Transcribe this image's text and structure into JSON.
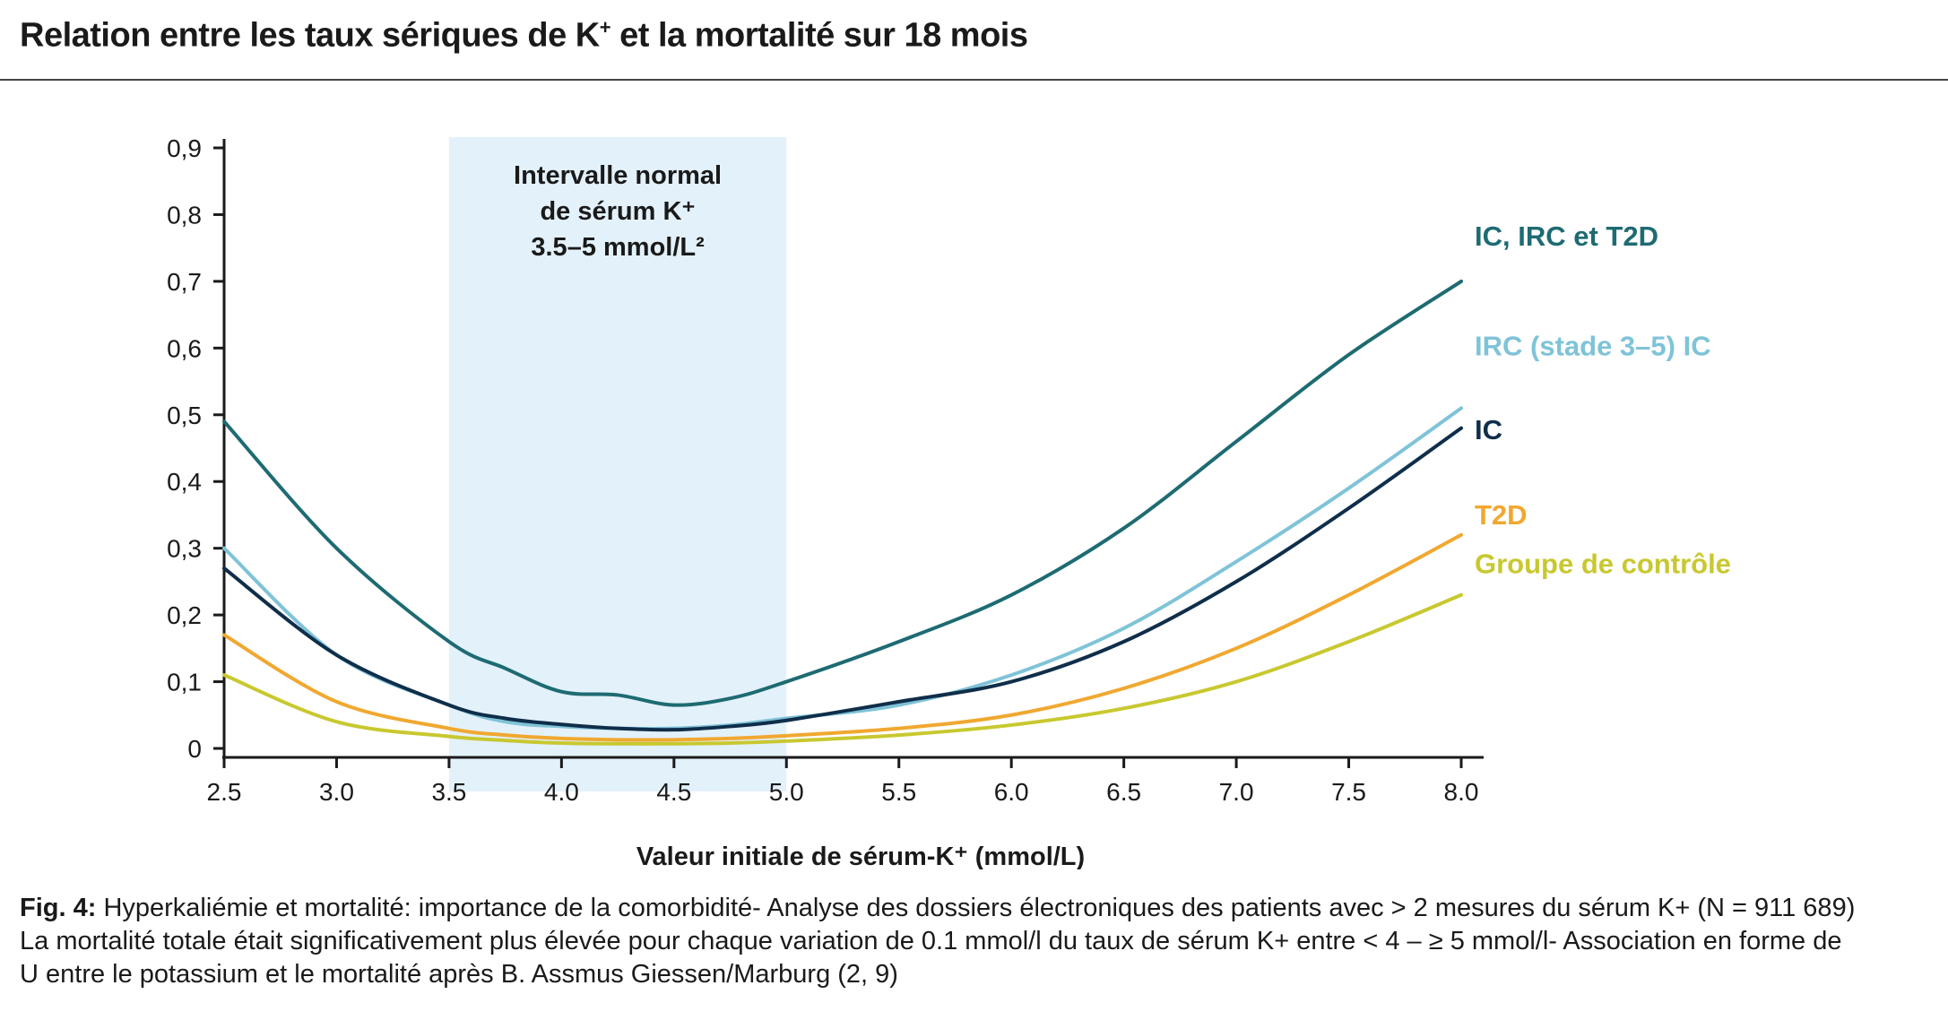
{
  "title": {
    "text_pre": "Relation entre les taux sériques de K",
    "text_sup": "+",
    "text_post": " et la mortalité sur 18 mois"
  },
  "caption": {
    "label": "Fig. 4:",
    "line1": " Hyperkaliémie et mortalité: importance de la comorbidité- Analyse des dossiers électroniques des patients avec > 2 mesures du sérum K+ (N = 911 689)",
    "line2": "La mortalité totale était significativement plus élevée pour chaque variation de 0.1 mmol/l du taux de sérum K+ entre < 4 – ≥ 5 mmol/l- Association en forme de",
    "line3": "U entre le potassium et le mortalité après B. Assmus Giessen/Marburg (2, 9)"
  },
  "chart_data": {
    "type": "line",
    "xlabel": "Valeur initiale de sérum-K⁺ (mmol/L)",
    "ylabel": "",
    "xlim": [
      2.5,
      8.0
    ],
    "ylim": [
      0,
      0.9
    ],
    "x_ticks": [
      "2.5",
      "3.0",
      "3.5",
      "4.0",
      "4.5",
      "5.0",
      "5.5",
      "6.0",
      "6.5",
      "7.0",
      "7.5",
      "8.0"
    ],
    "y_ticks": [
      "0",
      "0,1",
      "0,2",
      "0,3",
      "0,4",
      "0,5",
      "0,6",
      "0,7",
      "0,8",
      "0,9"
    ],
    "band": {
      "x_range": [
        3.5,
        5.0
      ],
      "color": "#e3f1fa",
      "label_lines": [
        "Intervalle normal",
        "de sérum K⁺",
        "3.5–5 mmol/L²"
      ]
    },
    "x": [
      2.5,
      3.0,
      3.5,
      3.75,
      4.0,
      4.25,
      4.5,
      4.75,
      5.0,
      5.5,
      6.0,
      6.5,
      7.0,
      7.5,
      8.0
    ],
    "series": [
      {
        "name": "IC, IRC et T2D",
        "color": "#1e6b72",
        "values": [
          0.49,
          0.3,
          0.16,
          0.12,
          0.085,
          0.08,
          0.065,
          0.075,
          0.1,
          0.16,
          0.23,
          0.33,
          0.46,
          0.59,
          0.7
        ]
      },
      {
        "name": "IRC (stade 3–5) IC",
        "color": "#7fc3d8",
        "values": [
          0.3,
          0.14,
          0.065,
          0.04,
          0.033,
          0.03,
          0.03,
          0.035,
          0.045,
          0.065,
          0.11,
          0.18,
          0.28,
          0.39,
          0.51
        ]
      },
      {
        "name": "IC",
        "color": "#0f2e4a",
        "values": [
          0.27,
          0.14,
          0.065,
          0.045,
          0.036,
          0.03,
          0.028,
          0.033,
          0.042,
          0.07,
          0.1,
          0.16,
          0.25,
          0.36,
          0.48
        ]
      },
      {
        "name": "T2D",
        "color": "#f0a830",
        "values": [
          0.17,
          0.07,
          0.03,
          0.02,
          0.015,
          0.013,
          0.013,
          0.015,
          0.019,
          0.03,
          0.05,
          0.09,
          0.15,
          0.23,
          0.32
        ]
      },
      {
        "name": "Groupe de contrôle",
        "color": "#c8c830",
        "values": [
          0.11,
          0.04,
          0.018,
          0.012,
          0.008,
          0.007,
          0.007,
          0.008,
          0.011,
          0.02,
          0.035,
          0.06,
          0.1,
          0.16,
          0.23
        ]
      }
    ],
    "legend": "right, inline labels at line ends",
    "grid": false
  }
}
